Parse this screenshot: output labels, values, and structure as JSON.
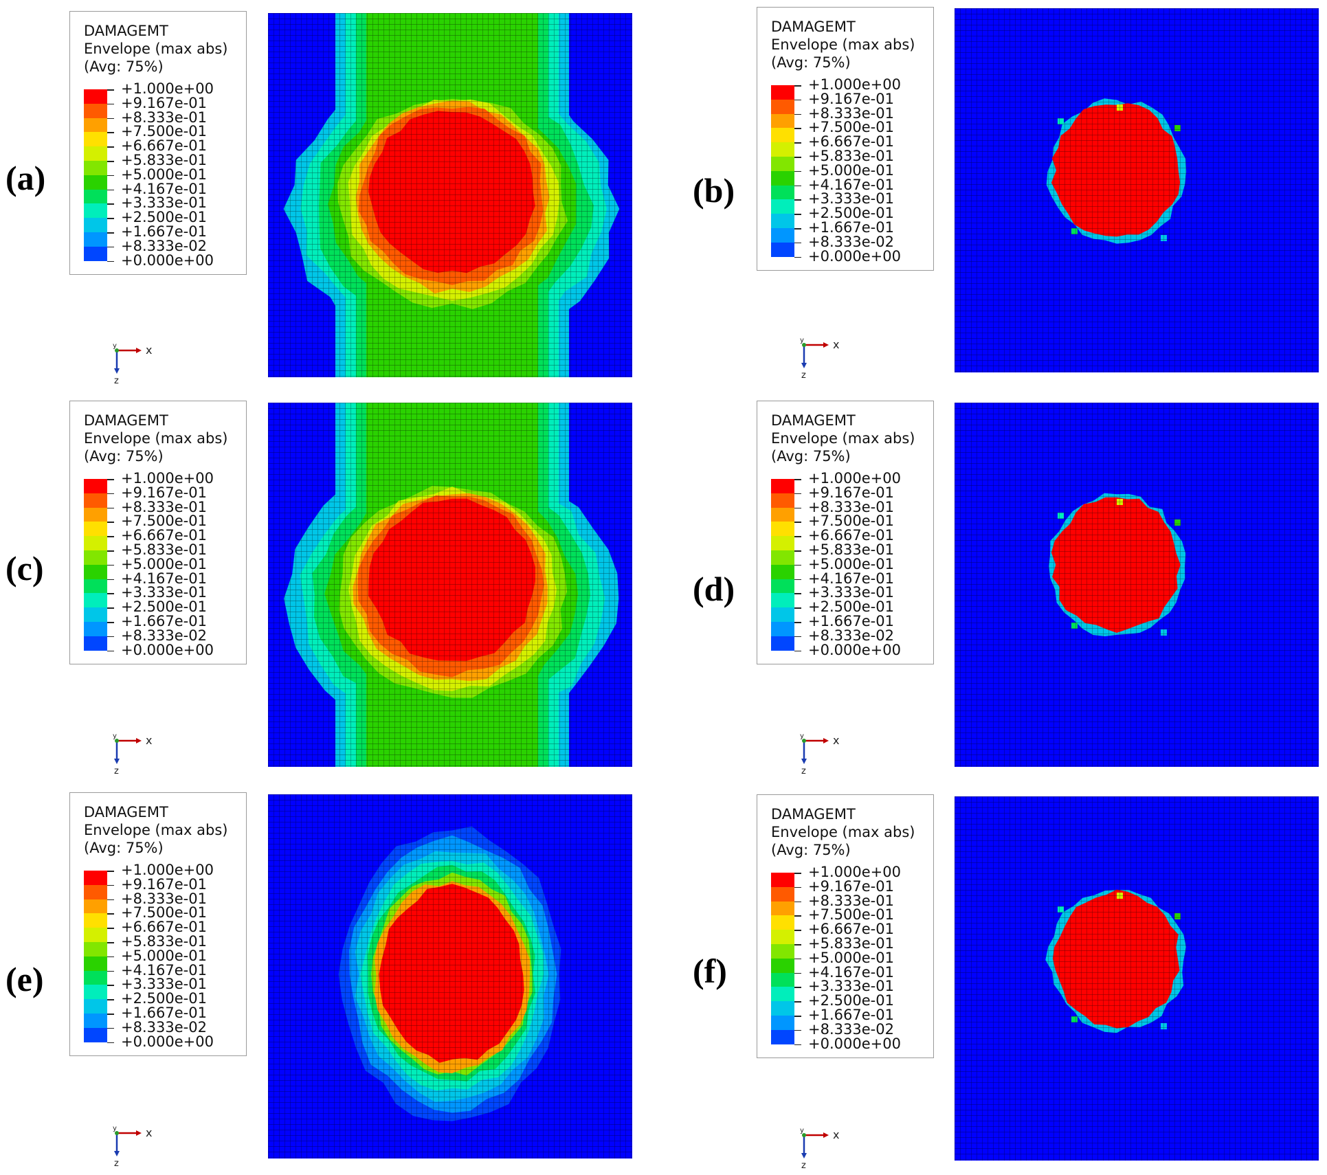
{
  "figure": {
    "panels": [
      {
        "label": "(a)",
        "model": "wide",
        "legend": {
          "title": [
            "DAMAGEMT",
            "Envelope (max abs)",
            "(Avg: 75%)"
          ]
        }
      },
      {
        "label": "(b)",
        "model": "compact",
        "legend": {
          "title": [
            "DAMAGEMT",
            "Envelope (max abs)",
            "(Avg: 75%)"
          ]
        }
      },
      {
        "label": "(c)",
        "model": "wide",
        "legend": {
          "title": [
            "DAMAGEMT",
            "Envelope (max abs)",
            "(Avg: 75%)"
          ]
        }
      },
      {
        "label": "(d)",
        "model": "compact",
        "legend": {
          "title": [
            "DAMAGEMT",
            "Envelope (max abs)",
            "(Avg: 75%)"
          ]
        }
      },
      {
        "label": "(e)",
        "model": "medium",
        "legend": {
          "title": [
            "DAMAGEMT",
            "Envelope (max abs)",
            "(Avg: 75%)"
          ]
        }
      },
      {
        "label": "(f)",
        "model": "compact",
        "legend": {
          "title": [
            "DAMAGEMT",
            "Envelope (max abs)",
            "(Avg: 75%)"
          ]
        }
      }
    ],
    "legend_values": [
      "+1.000e+00",
      "+9.167e-01",
      "+8.333e-01",
      "+7.500e-01",
      "+6.667e-01",
      "+5.833e-01",
      "+5.000e-01",
      "+4.167e-01",
      "+3.333e-01",
      "+2.500e-01",
      "+1.667e-01",
      "+8.333e-02",
      "+0.000e+00"
    ],
    "legend_colors": [
      "#ff0000",
      "#ff5a00",
      "#ffa000",
      "#ffe000",
      "#d4f000",
      "#82e600",
      "#2ad200",
      "#00e05a",
      "#00eebb",
      "#00c6e8",
      "#0096ff",
      "#0046ff",
      "#0000ff"
    ],
    "axis_triad": {
      "x_label": "x",
      "y_label": "y",
      "z_label": "z"
    }
  }
}
